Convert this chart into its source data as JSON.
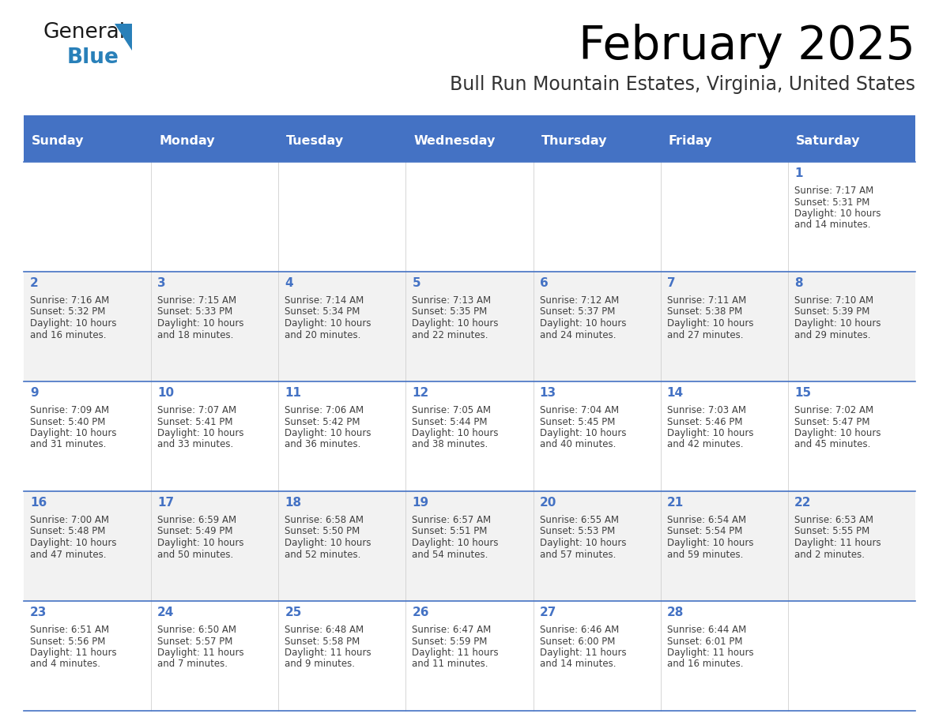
{
  "title": "February 2025",
  "subtitle": "Bull Run Mountain Estates, Virginia, United States",
  "header_bg": "#4472C4",
  "header_text_color": "#FFFFFF",
  "cell_bg_even": "#FFFFFF",
  "cell_bg_odd": "#F2F2F2",
  "day_number_color": "#4472C4",
  "info_text_color": "#404040",
  "border_color": "#4472C4",
  "days_of_week": [
    "Sunday",
    "Monday",
    "Tuesday",
    "Wednesday",
    "Thursday",
    "Friday",
    "Saturday"
  ],
  "calendar_data": [
    [
      null,
      null,
      null,
      null,
      null,
      null,
      {
        "day": "1",
        "sunrise": "7:17 AM",
        "sunset": "5:31 PM",
        "daylight": "10 hours\nand 14 minutes."
      }
    ],
    [
      {
        "day": "2",
        "sunrise": "7:16 AM",
        "sunset": "5:32 PM",
        "daylight": "10 hours\nand 16 minutes."
      },
      {
        "day": "3",
        "sunrise": "7:15 AM",
        "sunset": "5:33 PM",
        "daylight": "10 hours\nand 18 minutes."
      },
      {
        "day": "4",
        "sunrise": "7:14 AM",
        "sunset": "5:34 PM",
        "daylight": "10 hours\nand 20 minutes."
      },
      {
        "day": "5",
        "sunrise": "7:13 AM",
        "sunset": "5:35 PM",
        "daylight": "10 hours\nand 22 minutes."
      },
      {
        "day": "6",
        "sunrise": "7:12 AM",
        "sunset": "5:37 PM",
        "daylight": "10 hours\nand 24 minutes."
      },
      {
        "day": "7",
        "sunrise": "7:11 AM",
        "sunset": "5:38 PM",
        "daylight": "10 hours\nand 27 minutes."
      },
      {
        "day": "8",
        "sunrise": "7:10 AM",
        "sunset": "5:39 PM",
        "daylight": "10 hours\nand 29 minutes."
      }
    ],
    [
      {
        "day": "9",
        "sunrise": "7:09 AM",
        "sunset": "5:40 PM",
        "daylight": "10 hours\nand 31 minutes."
      },
      {
        "day": "10",
        "sunrise": "7:07 AM",
        "sunset": "5:41 PM",
        "daylight": "10 hours\nand 33 minutes."
      },
      {
        "day": "11",
        "sunrise": "7:06 AM",
        "sunset": "5:42 PM",
        "daylight": "10 hours\nand 36 minutes."
      },
      {
        "day": "12",
        "sunrise": "7:05 AM",
        "sunset": "5:44 PM",
        "daylight": "10 hours\nand 38 minutes."
      },
      {
        "day": "13",
        "sunrise": "7:04 AM",
        "sunset": "5:45 PM",
        "daylight": "10 hours\nand 40 minutes."
      },
      {
        "day": "14",
        "sunrise": "7:03 AM",
        "sunset": "5:46 PM",
        "daylight": "10 hours\nand 42 minutes."
      },
      {
        "day": "15",
        "sunrise": "7:02 AM",
        "sunset": "5:47 PM",
        "daylight": "10 hours\nand 45 minutes."
      }
    ],
    [
      {
        "day": "16",
        "sunrise": "7:00 AM",
        "sunset": "5:48 PM",
        "daylight": "10 hours\nand 47 minutes."
      },
      {
        "day": "17",
        "sunrise": "6:59 AM",
        "sunset": "5:49 PM",
        "daylight": "10 hours\nand 50 minutes."
      },
      {
        "day": "18",
        "sunrise": "6:58 AM",
        "sunset": "5:50 PM",
        "daylight": "10 hours\nand 52 minutes."
      },
      {
        "day": "19",
        "sunrise": "6:57 AM",
        "sunset": "5:51 PM",
        "daylight": "10 hours\nand 54 minutes."
      },
      {
        "day": "20",
        "sunrise": "6:55 AM",
        "sunset": "5:53 PM",
        "daylight": "10 hours\nand 57 minutes."
      },
      {
        "day": "21",
        "sunrise": "6:54 AM",
        "sunset": "5:54 PM",
        "daylight": "10 hours\nand 59 minutes."
      },
      {
        "day": "22",
        "sunrise": "6:53 AM",
        "sunset": "5:55 PM",
        "daylight": "11 hours\nand 2 minutes."
      }
    ],
    [
      {
        "day": "23",
        "sunrise": "6:51 AM",
        "sunset": "5:56 PM",
        "daylight": "11 hours\nand 4 minutes."
      },
      {
        "day": "24",
        "sunrise": "6:50 AM",
        "sunset": "5:57 PM",
        "daylight": "11 hours\nand 7 minutes."
      },
      {
        "day": "25",
        "sunrise": "6:48 AM",
        "sunset": "5:58 PM",
        "daylight": "11 hours\nand 9 minutes."
      },
      {
        "day": "26",
        "sunrise": "6:47 AM",
        "sunset": "5:59 PM",
        "daylight": "11 hours\nand 11 minutes."
      },
      {
        "day": "27",
        "sunrise": "6:46 AM",
        "sunset": "6:00 PM",
        "daylight": "11 hours\nand 14 minutes."
      },
      {
        "day": "28",
        "sunrise": "6:44 AM",
        "sunset": "6:01 PM",
        "daylight": "11 hours\nand 16 minutes."
      },
      null
    ]
  ]
}
